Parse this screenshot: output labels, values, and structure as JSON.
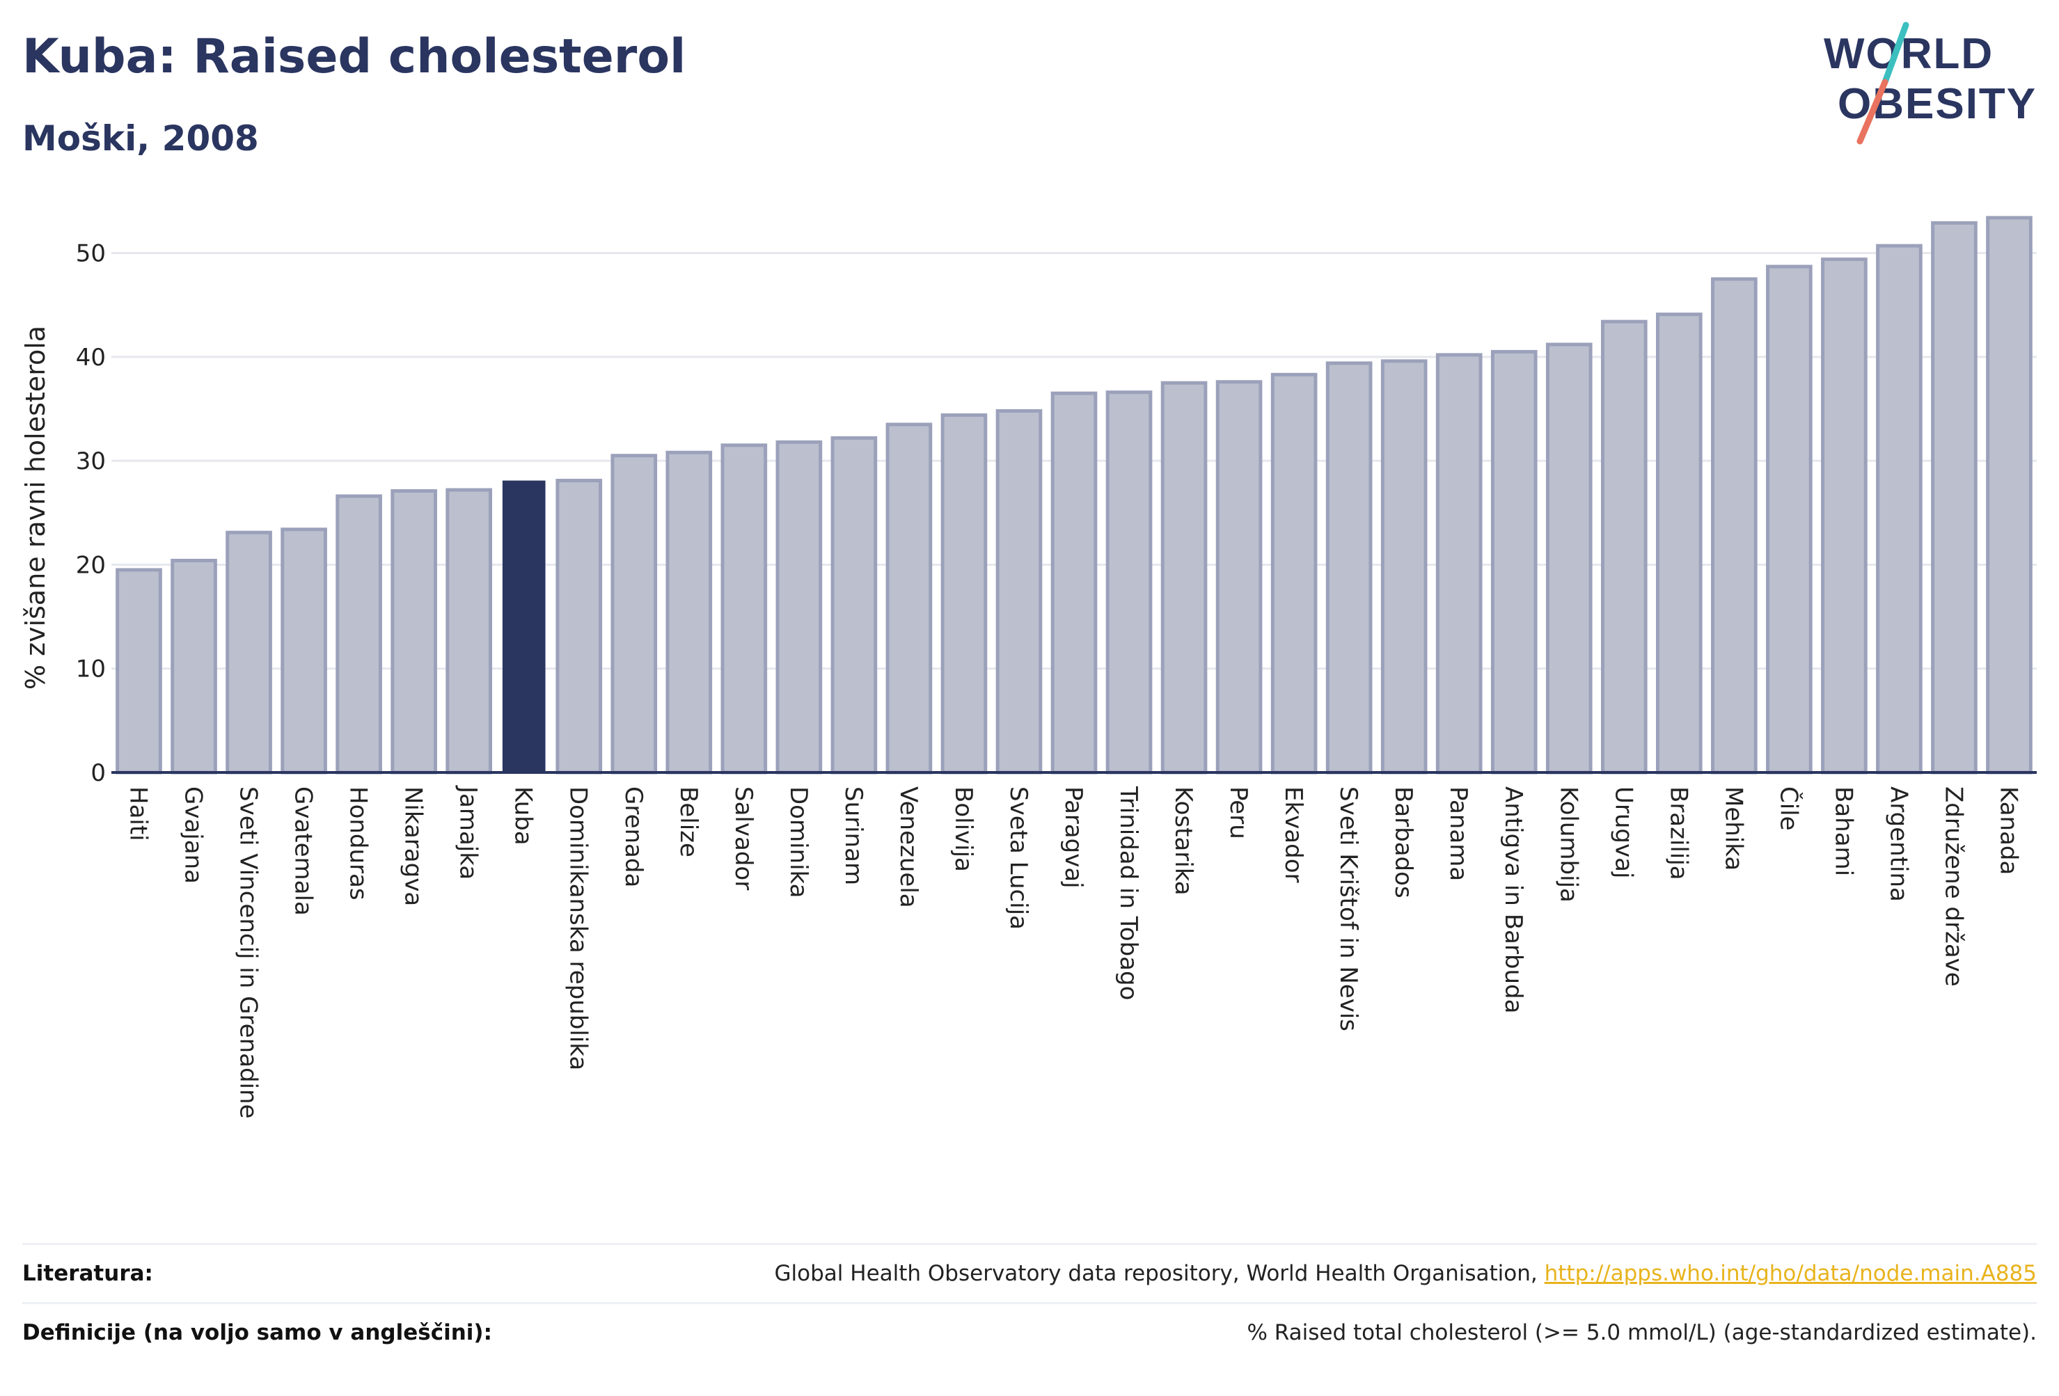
{
  "header": {
    "title": "Kuba: Raised cholesterol",
    "subtitle": "Moški, 2008"
  },
  "logo": {
    "line1": "WORLD",
    "line2": "OBESITY"
  },
  "colors": {
    "bar": "#bcc0ce",
    "bar_border": "#9ba1ba",
    "highlight": "#2a3560",
    "grid": "#e6e8ee",
    "axis": "#2a3560"
  },
  "chart_data": {
    "type": "bar",
    "ylabel": "% zvišane ravni holesterola",
    "ylim": [
      0,
      55
    ],
    "yticks": [
      0,
      10,
      20,
      30,
      40,
      50
    ],
    "grid": true,
    "highlight": "Kuba",
    "categories": [
      "Haiti",
      "Gvajana",
      "Sveti Vincencij in Grenadine",
      "Gvatemala",
      "Honduras",
      "Nikaragva",
      "Jamajka",
      "Kuba",
      "Dominikanska republika",
      "Grenada",
      "Belize",
      "Salvador",
      "Dominika",
      "Surinam",
      "Venezuela",
      "Bolivija",
      "Sveta Lucija",
      "Paragvaj",
      "Trinidad in Tobago",
      "Kostarika",
      "Peru",
      "Ekvador",
      "Sveti Krištof in Nevis",
      "Barbados",
      "Panama",
      "Antigva in Barbuda",
      "Kolumbija",
      "Urugvaj",
      "Brazilija",
      "Mehika",
      "Čile",
      "Bahami",
      "Argentina",
      "Združene države",
      "Kanada"
    ],
    "values": [
      19.5,
      20.4,
      23.1,
      23.4,
      26.6,
      27.1,
      27.2,
      28.1,
      28.1,
      30.5,
      30.8,
      31.5,
      31.8,
      32.2,
      33.5,
      34.4,
      34.8,
      36.5,
      36.6,
      37.5,
      37.6,
      38.3,
      39.4,
      39.6,
      40.2,
      40.5,
      41.2,
      43.4,
      44.1,
      47.5,
      48.7,
      49.4,
      50.7,
      52.9,
      53.4
    ]
  },
  "footer": {
    "literature_label": "Literatura:",
    "literature_text": "Global Health Observatory data repository, World Health Organisation, ",
    "literature_link": "http://apps.who.int/gho/data/node.main.A885",
    "definitions_label": "Definicije (na voljo samo v angleščini):",
    "definitions_text": "% Raised total cholesterol (>= 5.0 mmol/L) (age-standardized estimate)."
  }
}
